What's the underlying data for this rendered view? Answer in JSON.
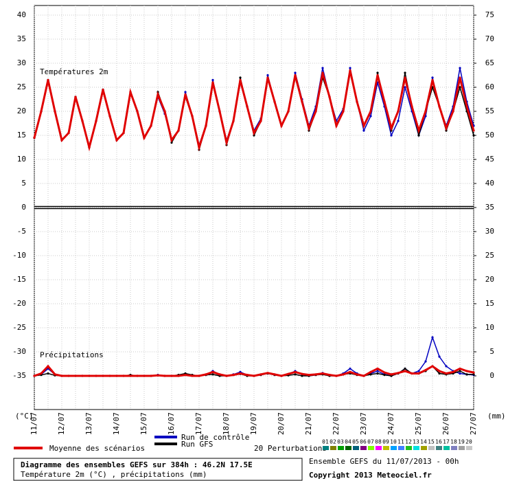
{
  "chart_data": {
    "type": "line",
    "title": "Diagramme des ensembles GEFS sur 384h : 46.2N 17.5E",
    "subtitle": "Température 2m (°C) , précipitations (mm)",
    "run_info": "Ensemble GEFS du 11/07/2013 - 00h",
    "copyright": "Copyright 2013 Meteociel.fr",
    "ylabel": "(°C)",
    "y2label": "(mm)",
    "annotations": [
      "Températures 2m",
      "Précipitations"
    ],
    "grid": true,
    "ylim": [
      -42,
      40
    ],
    "yticks": [
      -35,
      -30,
      -25,
      -20,
      -15,
      -10,
      -5,
      0,
      5,
      10,
      15,
      20,
      25,
      30,
      35,
      40
    ],
    "y2lim": [
      -7,
      75
    ],
    "y2ticks": [
      0,
      5,
      10,
      15,
      20,
      25,
      30,
      35,
      40,
      45,
      50,
      55,
      60,
      65,
      70,
      75
    ],
    "categories": [
      "11/07",
      null,
      null,
      null,
      "12/07",
      null,
      null,
      null,
      "13/07",
      null,
      null,
      null,
      "14/07",
      null,
      null,
      null,
      "15/07",
      null,
      null,
      null,
      "16/07",
      null,
      null,
      null,
      "17/07",
      null,
      null,
      null,
      "18/07",
      null,
      null,
      null,
      "19/07",
      null,
      null,
      null,
      "20/07",
      null,
      null,
      null,
      "21/07",
      null,
      null,
      null,
      "22/07",
      null,
      null,
      null,
      "23/07",
      null,
      null,
      null,
      "24/07",
      null,
      null,
      null,
      "25/07",
      null,
      null,
      null,
      "26/07",
      null,
      null,
      null,
      "27/07"
    ],
    "series": [
      {
        "name": "Run de contrôle",
        "color": "#0000c0",
        "values": [
          14.5,
          20,
          26.5,
          20,
          14,
          15.5,
          23,
          18,
          12.5,
          18,
          24.5,
          19,
          14,
          15.5,
          24,
          20,
          14.5,
          17,
          23,
          19.5,
          14,
          16,
          24,
          19,
          13,
          17,
          26.5,
          20,
          14,
          18,
          26,
          21,
          16,
          18.5,
          27.5,
          22,
          17,
          20,
          28,
          22.5,
          17,
          21,
          29,
          23,
          18,
          20.5,
          29,
          22,
          16,
          19,
          26,
          21,
          15,
          18,
          25,
          20,
          15,
          19,
          27,
          21,
          17,
          21,
          29,
          22,
          17
        ],
        "y2_values": [
          0,
          0.3,
          1.5,
          0.3,
          0,
          0,
          0,
          0,
          0,
          0,
          0,
          0,
          0,
          0,
          0,
          0,
          0,
          0,
          0.2,
          0,
          0,
          0,
          0.3,
          0.1,
          0,
          0.2,
          1,
          0.3,
          0,
          0.3,
          0.8,
          0.2,
          0,
          0.2,
          0.5,
          0.2,
          0,
          0.3,
          1,
          0.3,
          0,
          0.2,
          0.6,
          0.2,
          0,
          0.5,
          1.5,
          0.5,
          0,
          0.5,
          1,
          0.3,
          0,
          0.5,
          1.5,
          0.5,
          1,
          3,
          8,
          4,
          2,
          1,
          0.5,
          0.3,
          0.2
        ]
      },
      {
        "name": "Run GFS",
        "color": "#000000",
        "values": [
          14.5,
          20,
          26.5,
          20,
          14,
          15.5,
          23,
          18,
          12.5,
          18,
          24.5,
          19,
          14,
          15.5,
          24,
          20,
          14.5,
          17,
          24,
          20,
          13.5,
          16,
          23,
          19,
          12,
          17,
          26,
          20,
          13,
          18,
          27,
          21,
          15,
          18,
          27,
          22,
          17,
          20,
          27,
          22,
          16,
          20,
          27,
          23,
          17,
          20,
          28,
          22,
          17,
          20,
          28,
          22,
          16,
          20,
          28,
          21,
          15,
          20,
          25,
          21,
          16,
          20,
          25,
          20,
          15
        ],
        "y2_values": [
          0,
          0.2,
          0.5,
          0.1,
          0,
          0,
          0,
          0,
          0,
          0,
          0,
          0,
          0,
          0,
          0.2,
          0,
          0,
          0,
          0.1,
          0,
          0,
          0.2,
          0.5,
          0.2,
          0,
          0.2,
          0.3,
          0,
          0,
          0.2,
          0.4,
          0,
          0,
          0.2,
          0.5,
          0.2,
          0,
          0.1,
          0.3,
          0,
          0,
          0.2,
          0.3,
          0,
          0,
          0.3,
          0.5,
          0.2,
          0,
          0.3,
          0.5,
          0.2,
          0,
          0.5,
          1.5,
          0.5,
          0.5,
          1,
          2,
          0.5,
          0.3,
          0.5,
          1,
          0.3,
          0.3
        ]
      },
      {
        "name": "Moyenne des scénarios",
        "color": "#e00000",
        "values": [
          14.5,
          20,
          26.5,
          20,
          14,
          15.5,
          23,
          18,
          12.5,
          18,
          24.5,
          19,
          14,
          15.5,
          24,
          20,
          14.5,
          17,
          23.5,
          20,
          14,
          16,
          23.5,
          19,
          12.5,
          17,
          26,
          20,
          13.5,
          18,
          26.5,
          21,
          15.5,
          18,
          27,
          22,
          17,
          20,
          27.5,
          22,
          16.5,
          20,
          28,
          23,
          17,
          20,
          28.5,
          22,
          17,
          20,
          27.5,
          22,
          16.5,
          20,
          27,
          21,
          16,
          20,
          26.5,
          21,
          16.5,
          20,
          27,
          21,
          16
        ],
        "y2_values": [
          0,
          0.5,
          2,
          0.3,
          0,
          0,
          0,
          0,
          0,
          0,
          0,
          0,
          0,
          0,
          0,
          0,
          0,
          0,
          0.1,
          0,
          0,
          0,
          0.2,
          0,
          0,
          0.3,
          0.8,
          0.3,
          0,
          0.2,
          0.5,
          0.2,
          0,
          0.3,
          0.6,
          0.3,
          0,
          0.4,
          0.8,
          0.4,
          0.2,
          0.3,
          0.5,
          0.2,
          0,
          0.3,
          0.8,
          0.3,
          0,
          0.8,
          1.5,
          0.7,
          0.3,
          0.6,
          1,
          0.5,
          0.5,
          1.2,
          2,
          1,
          0.5,
          0.8,
          1.5,
          1,
          0.7
        ]
      }
    ],
    "perturbations": {
      "label": "20 Perturbations",
      "members": [
        {
          "name": "01",
          "color": "#008080"
        },
        {
          "name": "02",
          "color": "#808000"
        },
        {
          "name": "03",
          "color": "#00a000"
        },
        {
          "name": "04",
          "color": "#006400"
        },
        {
          "name": "05",
          "color": "#00607a"
        },
        {
          "name": "06",
          "color": "#800080"
        },
        {
          "name": "07",
          "color": "#80ff00"
        },
        {
          "name": "08",
          "color": "#ff00ff"
        },
        {
          "name": "09",
          "color": "#c0c000"
        },
        {
          "name": "10",
          "color": "#00a0ff"
        },
        {
          "name": "11",
          "color": "#4080ff"
        },
        {
          "name": "12",
          "color": "#20c020"
        },
        {
          "name": "13",
          "color": "#00e0e0"
        },
        {
          "name": "14",
          "color": "#a0a000"
        },
        {
          "name": "15",
          "color": "#c0c0c0"
        },
        {
          "name": "16",
          "color": "#408080"
        },
        {
          "name": "17",
          "color": "#00c0a0"
        },
        {
          "name": "18",
          "color": "#8080c0"
        },
        {
          "name": "19",
          "color": "#a0a0a0"
        },
        {
          "name": "20",
          "color": "#c8c8c8"
        }
      ]
    }
  }
}
